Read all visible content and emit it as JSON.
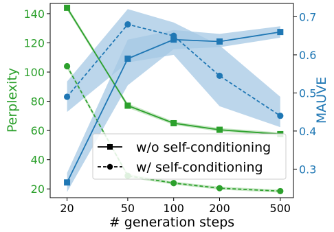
{
  "chart_data": {
    "type": "line",
    "xlabel": "# generation steps",
    "ylabel_left": "Perplexity",
    "ylabel_right": "MAUVE",
    "xscale": "log",
    "x": [
      20,
      50,
      100,
      200,
      500
    ],
    "x_ticks": [
      "20",
      "50",
      "100",
      "200",
      "500"
    ],
    "ylim_left": [
      14,
      147
    ],
    "ylim_right": [
      0.225,
      0.735
    ],
    "yticks_left": [
      "20",
      "40",
      "60",
      "80",
      "100",
      "120",
      "140"
    ],
    "yticks_right": [
      "0.3",
      "0.4",
      "0.5",
      "0.6",
      "0.7"
    ],
    "series": [
      {
        "axis": "left",
        "style": "solid",
        "marker": "square",
        "color": "#2ca02c",
        "values": [
          144,
          77,
          65,
          60.5,
          57.5
        ],
        "band": [
          1.5,
          1.5,
          1.2,
          1.2,
          1.2
        ]
      },
      {
        "axis": "left",
        "style": "dashed",
        "marker": "circle",
        "color": "#2ca02c",
        "values": [
          104,
          29,
          24,
          20.5,
          18.5
        ],
        "band": [
          1.5,
          1.2,
          1.0,
          1.0,
          1.0
        ]
      },
      {
        "axis": "right",
        "style": "solid",
        "marker": "square",
        "color": "#1f77b4",
        "values": [
          0.265,
          0.59,
          0.64,
          0.635,
          0.66
        ],
        "lower": [
          0.24,
          0.52,
          0.615,
          0.62,
          0.645
        ],
        "upper": [
          0.29,
          0.64,
          0.665,
          0.655,
          0.675
        ]
      },
      {
        "axis": "right",
        "style": "dashed",
        "marker": "circle",
        "color": "#1f77b4",
        "values": [
          0.49,
          0.68,
          0.65,
          0.545,
          0.44
        ],
        "lower": [
          0.45,
          0.58,
          0.6,
          0.465,
          0.41
        ],
        "upper": [
          0.53,
          0.72,
          0.685,
          0.625,
          0.49
        ]
      }
    ],
    "legend": {
      "position": "lower-right",
      "entries": [
        {
          "label": "w/o self-conditioning",
          "style": "solid",
          "marker": "square",
          "color": "#000000"
        },
        {
          "label": "w/ self-conditioning",
          "style": "dashed",
          "marker": "circle",
          "color": "#000000"
        }
      ]
    },
    "colors": {
      "left_axis": "#2ca02c",
      "right_axis": "#1f77b4",
      "right_band": "#a6c8e4",
      "left_band": "#b8e0b4"
    }
  }
}
